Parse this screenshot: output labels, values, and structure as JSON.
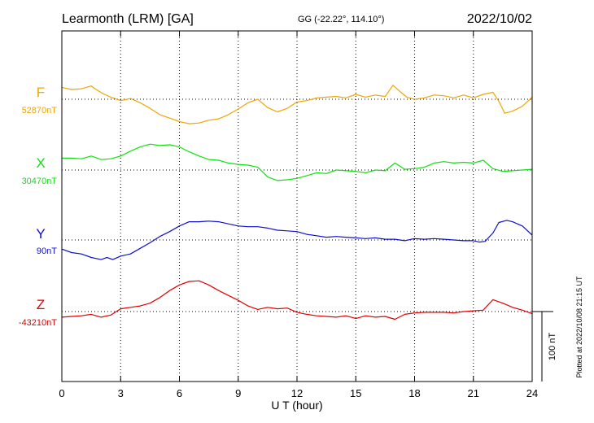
{
  "chart_data": {
    "type": "line",
    "title": "Learmonth (LRM)  [GA]",
    "coords": "GG (-22.22°, 114.10°)",
    "date": "2022/10/02",
    "xlabel": "U T (hour)",
    "xlim": [
      0,
      24
    ],
    "xticks": [
      0,
      3,
      6,
      9,
      12,
      15,
      18,
      21,
      24
    ],
    "xtick_labels": [
      "0",
      "3",
      "6",
      "9",
      "12",
      "15",
      "18",
      "21",
      "24"
    ],
    "grid": true,
    "scale_bar_label": "100 nT",
    "scale_bar_nT": 100,
    "plotted_note": "Plotted at 2022/10/08 21:15 UT",
    "series": [
      {
        "name": "F",
        "baseline_label": "52870nT",
        "baseline": 52870,
        "color": "#f0a500",
        "x": [
          0,
          0.5,
          1,
          1.5,
          1.8,
          2.1,
          2.5,
          3,
          3.5,
          4,
          4.5,
          5,
          5.5,
          6,
          6.5,
          7,
          7.5,
          8,
          8.5,
          9,
          9.5,
          10,
          10.5,
          11,
          11.5,
          12,
          12.5,
          13,
          13.5,
          14,
          14.5,
          15,
          15.5,
          16,
          16.5,
          16.9,
          17.3,
          17.6,
          18,
          18.5,
          19,
          19.5,
          20,
          20.5,
          21,
          21.5,
          22,
          22.3,
          22.6,
          23,
          23.5,
          24
        ],
        "values": [
          52887,
          52884,
          52885,
          52889,
          52883,
          52878,
          52873,
          52868,
          52871,
          52865,
          52857,
          52848,
          52843,
          52838,
          52835,
          52836,
          52840,
          52842,
          52848,
          52856,
          52865,
          52870,
          52858,
          52852,
          52857,
          52866,
          52868,
          52872,
          52873,
          52874,
          52872,
          52877,
          52873,
          52876,
          52874,
          52890,
          52880,
          52873,
          52870,
          52872,
          52876,
          52875,
          52872,
          52876,
          52872,
          52877,
          52880,
          52867,
          52850,
          52853,
          52860,
          52873
        ]
      },
      {
        "name": "X",
        "baseline_label": "30470nT",
        "baseline": 30470,
        "color": "#10e010",
        "x": [
          0,
          0.5,
          1,
          1.5,
          2,
          2.5,
          3,
          3.5,
          4,
          4.5,
          5,
          5.5,
          6,
          6.5,
          7,
          7.5,
          8,
          8.5,
          9,
          9.5,
          10,
          10.5,
          11,
          11.5,
          12,
          12.5,
          13,
          13.5,
          14,
          14.5,
          15,
          15.5,
          16,
          16.5,
          17,
          17.5,
          18,
          18.5,
          19,
          19.5,
          20,
          20.5,
          21,
          21.5,
          22,
          22.5,
          23,
          23.5,
          24
        ],
        "values": [
          30487,
          30487,
          30486,
          30490,
          30485,
          30486,
          30490,
          30497,
          30503,
          30507,
          30505,
          30506,
          30503,
          30496,
          30490,
          30485,
          30484,
          30480,
          30478,
          30477,
          30474,
          30460,
          30455,
          30456,
          30458,
          30462,
          30466,
          30465,
          30470,
          30469,
          30468,
          30466,
          30470,
          30469,
          30480,
          30471,
          30472,
          30474,
          30480,
          30482,
          30480,
          30481,
          30480,
          30484,
          30472,
          30468,
          30469,
          30470,
          30471
        ]
      },
      {
        "name": "Y",
        "baseline_label": "90nT",
        "baseline": 90,
        "color": "#1010d0",
        "x": [
          0,
          0.5,
          1,
          1.5,
          2,
          2.3,
          2.6,
          3,
          3.5,
          4,
          4.5,
          5,
          5.5,
          6,
          6.5,
          7,
          7.5,
          8,
          8.5,
          9,
          9.5,
          10,
          10.5,
          11,
          11.5,
          12,
          12.5,
          13,
          13.5,
          14,
          14.5,
          15,
          15.5,
          16,
          16.5,
          17,
          17.5,
          18,
          18.5,
          19,
          19.5,
          20,
          20.5,
          21,
          21.3,
          21.6,
          22,
          22.3,
          22.7,
          23,
          23.5,
          24
        ],
        "values": [
          77,
          72,
          70,
          65,
          62,
          65,
          62,
          67,
          70,
          78,
          86,
          95,
          102,
          110,
          116,
          116,
          117,
          116,
          113,
          110,
          109,
          109,
          107,
          104,
          103,
          102,
          98,
          96,
          94,
          95,
          94,
          93,
          92,
          93,
          91,
          91,
          89,
          92,
          91,
          92,
          91,
          90,
          89,
          89,
          87,
          88,
          100,
          115,
          118,
          116,
          110,
          97
        ]
      },
      {
        "name": "Z",
        "baseline_label": "-43210nT",
        "baseline": -43210,
        "color": "#e00000",
        "x": [
          0,
          0.5,
          1,
          1.5,
          2,
          2.5,
          3,
          3.5,
          4,
          4.5,
          5,
          5.5,
          6,
          6.5,
          7,
          7.5,
          8,
          8.5,
          9,
          9.5,
          10,
          10.5,
          11,
          11.5,
          12,
          12.5,
          13,
          13.5,
          14,
          14.5,
          15,
          15.5,
          16,
          16.5,
          17,
          17.5,
          18,
          18.5,
          19,
          19.5,
          20,
          20.5,
          21,
          21.5,
          22,
          22.5,
          23,
          23.5,
          24
        ],
        "values": [
          -43218,
          -43217,
          -43216,
          -43214,
          -43218,
          -43215,
          -43206,
          -43204,
          -43202,
          -43198,
          -43190,
          -43180,
          -43172,
          -43167,
          -43166,
          -43172,
          -43180,
          -43187,
          -43194,
          -43202,
          -43207,
          -43204,
          -43206,
          -43205,
          -43211,
          -43214,
          -43216,
          -43217,
          -43218,
          -43216,
          -43220,
          -43216,
          -43218,
          -43217,
          -43221,
          -43214,
          -43212,
          -43211,
          -43211,
          -43211,
          -43212,
          -43210,
          -43209,
          -43208,
          -43193,
          -43198,
          -43204,
          -43208,
          -43213
        ]
      }
    ]
  }
}
